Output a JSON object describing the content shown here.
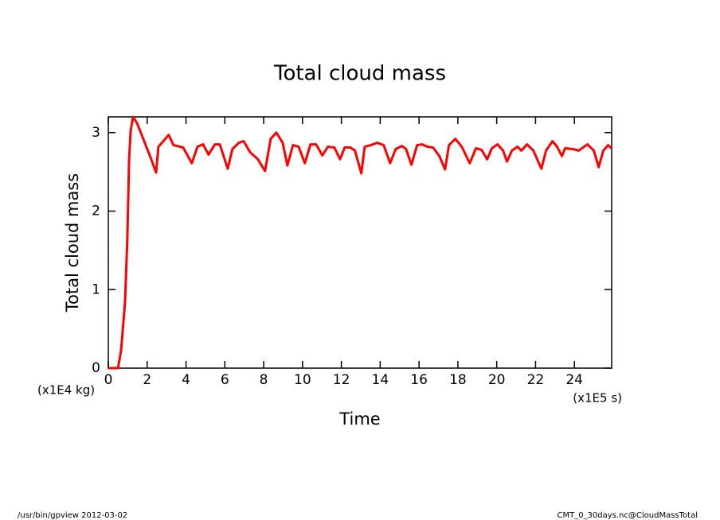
{
  "chart_data": {
    "type": "line",
    "title": "Total cloud mass",
    "x_label": "Time",
    "y_label": "Total cloud mass",
    "x_unit": "(x1E5 s)",
    "y_unit": "(x1E4 kg)",
    "footer_left": "/usr/bin/gpview  2012-03-02",
    "footer_right": "CMT_0_30days.nc@CloudMassTotal",
    "xlim": [
      0,
      25.92
    ],
    "ylim": [
      0,
      3.2
    ],
    "xticks": [
      0,
      2,
      4,
      6,
      8,
      10,
      12,
      14,
      16,
      18,
      20,
      22,
      24
    ],
    "yticks": [
      0,
      1,
      2,
      3
    ],
    "x": [
      0,
      0.5,
      0.66,
      0.86,
      0.98,
      1.07,
      1.15,
      1.27,
      1.48,
      1.8,
      2.21,
      2.46,
      2.58,
      2.83,
      3.11,
      3.36,
      3.85,
      4.3,
      4.59,
      4.88,
      5.16,
      5.49,
      5.74,
      6.15,
      6.39,
      6.72,
      6.97,
      7.3,
      7.7,
      8.07,
      8.36,
      8.65,
      8.98,
      9.22,
      9.51,
      9.8,
      10.12,
      10.41,
      10.7,
      11.02,
      11.31,
      11.64,
      11.93,
      12.17,
      12.46,
      12.7,
      13.03,
      13.2,
      13.52,
      13.85,
      14.18,
      14.51,
      14.8,
      15.12,
      15.33,
      15.61,
      15.9,
      16.15,
      16.43,
      16.72,
      17.05,
      17.34,
      17.54,
      17.87,
      18.2,
      18.61,
      18.93,
      19.22,
      19.51,
      19.75,
      20.04,
      20.33,
      20.53,
      20.78,
      21.07,
      21.27,
      21.56,
      21.89,
      22.3,
      22.54,
      22.87,
      23.11,
      23.36,
      23.52,
      23.93,
      24.22,
      24.67,
      25.0,
      25.25,
      25.49,
      25.74,
      25.9
    ],
    "series": [
      {
        "color": "#ff0000",
        "values": [
          0,
          0,
          0.23,
          0.84,
          1.65,
          2.66,
          3.02,
          3.2,
          3.12,
          2.92,
          2.66,
          2.49,
          2.82,
          2.89,
          2.97,
          2.84,
          2.81,
          2.61,
          2.82,
          2.85,
          2.72,
          2.85,
          2.85,
          2.54,
          2.79,
          2.87,
          2.89,
          2.75,
          2.66,
          2.51,
          2.92,
          3.0,
          2.87,
          2.58,
          2.84,
          2.82,
          2.61,
          2.85,
          2.85,
          2.71,
          2.82,
          2.81,
          2.66,
          2.81,
          2.81,
          2.77,
          2.48,
          2.82,
          2.84,
          2.87,
          2.84,
          2.61,
          2.79,
          2.83,
          2.79,
          2.59,
          2.84,
          2.85,
          2.82,
          2.81,
          2.7,
          2.53,
          2.84,
          2.92,
          2.82,
          2.61,
          2.8,
          2.78,
          2.66,
          2.8,
          2.85,
          2.77,
          2.63,
          2.77,
          2.82,
          2.77,
          2.85,
          2.77,
          2.54,
          2.77,
          2.89,
          2.82,
          2.7,
          2.8,
          2.79,
          2.77,
          2.85,
          2.77,
          2.56,
          2.77,
          2.84,
          2.8
        ]
      }
    ]
  }
}
